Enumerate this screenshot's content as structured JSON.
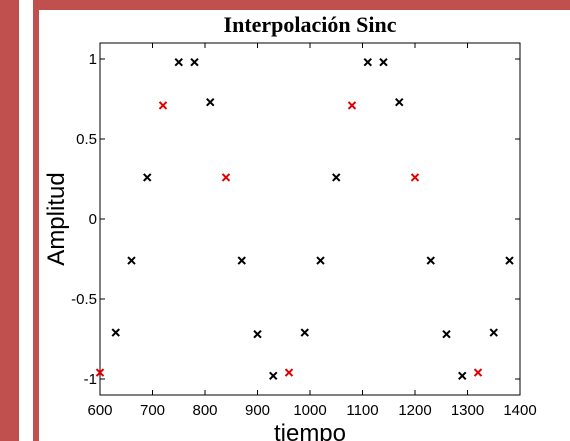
{
  "colors": {
    "frame": "#c0504d",
    "marker_black": "#000000",
    "marker_red": "#e00000"
  },
  "chart_data": {
    "type": "scatter",
    "title": "Interpolación Sinc",
    "xlabel": "tiempo",
    "ylabel": "Amplitud",
    "xlim": [
      600,
      1400
    ],
    "ylim": [
      -1.1,
      1.1
    ],
    "x_ticks": [
      "600",
      "700",
      "800",
      "900",
      "1000",
      "1100",
      "1200",
      "1300",
      "1400"
    ],
    "y_ticks": [
      "1",
      "0.5",
      "0",
      "-0.5",
      "-1"
    ],
    "y_tick_values": [
      1,
      0.5,
      0,
      -0.5,
      -1
    ],
    "x_tick_values": [
      600,
      700,
      800,
      900,
      1000,
      1100,
      1200,
      1300,
      1400
    ],
    "grid": false,
    "marker": "x",
    "series": [
      {
        "color": "#000000",
        "points": [
          [
            630,
            -0.71
          ],
          [
            660,
            -0.26
          ],
          [
            690,
            0.26
          ],
          [
            750,
            0.98
          ],
          [
            780,
            0.98
          ],
          [
            810,
            0.73
          ],
          [
            870,
            -0.26
          ],
          [
            900,
            -0.72
          ],
          [
            930,
            -0.98
          ],
          [
            990,
            -0.71
          ],
          [
            1020,
            -0.26
          ],
          [
            1050,
            0.26
          ],
          [
            1110,
            0.98
          ],
          [
            1140,
            0.98
          ],
          [
            1170,
            0.73
          ],
          [
            1230,
            -0.26
          ],
          [
            1260,
            -0.72
          ],
          [
            1290,
            -0.98
          ],
          [
            1350,
            -0.71
          ],
          [
            1380,
            -0.26
          ]
        ]
      },
      {
        "color": "#e00000",
        "points": [
          [
            600,
            -0.96
          ],
          [
            720,
            0.71
          ],
          [
            840,
            0.26
          ],
          [
            960,
            -0.96
          ],
          [
            1080,
            0.71
          ],
          [
            1200,
            0.26
          ],
          [
            1320,
            -0.96
          ]
        ]
      }
    ]
  }
}
